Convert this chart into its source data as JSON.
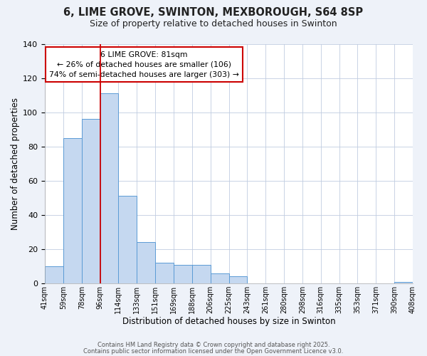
{
  "title": "6, LIME GROVE, SWINTON, MEXBOROUGH, S64 8SP",
  "subtitle": "Size of property relative to detached houses in Swinton",
  "xlabel": "Distribution of detached houses by size in Swinton",
  "ylabel": "Number of detached properties",
  "bar_values": [
    10,
    85,
    96,
    111,
    51,
    24,
    12,
    11,
    11,
    6,
    4,
    0,
    0,
    0,
    0,
    0,
    0,
    0,
    0,
    1
  ],
  "bar_labels": [
    "41sqm",
    "59sqm",
    "78sqm",
    "96sqm",
    "114sqm",
    "133sqm",
    "151sqm",
    "169sqm",
    "188sqm",
    "206sqm",
    "225sqm",
    "243sqm",
    "261sqm",
    "280sqm",
    "298sqm",
    "316sqm",
    "335sqm",
    "353sqm",
    "371sqm",
    "390sqm",
    "408sqm"
  ],
  "ylim": [
    0,
    140
  ],
  "yticks": [
    0,
    20,
    40,
    60,
    80,
    100,
    120,
    140
  ],
  "bar_color": "#c5d8f0",
  "bar_edge_color": "#5b9bd5",
  "vline_x": 3,
  "vline_color": "#cc0000",
  "annotation_title": "6 LIME GROVE: 81sqm",
  "annotation_line1": "← 26% of detached houses are smaller (106)",
  "annotation_line2": "74% of semi-detached houses are larger (303) →",
  "footer1": "Contains HM Land Registry data © Crown copyright and database right 2025.",
  "footer2": "Contains public sector information licensed under the Open Government Licence v3.0.",
  "bg_color": "#eef2f9",
  "plot_bg_color": "#ffffff"
}
